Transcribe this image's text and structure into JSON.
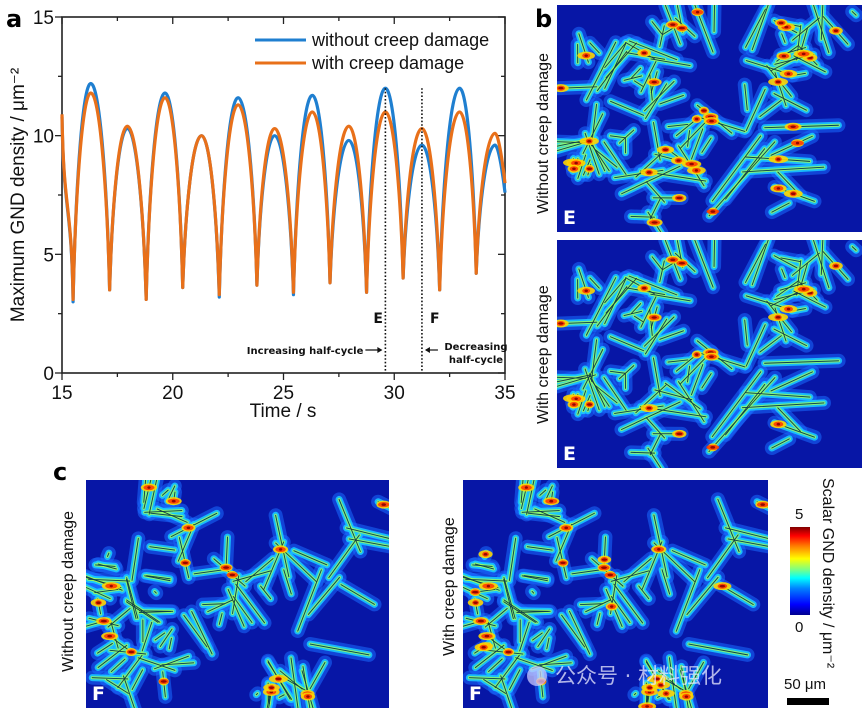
{
  "panels": {
    "a": {
      "letter": "a"
    },
    "b": {
      "letter": "b",
      "top_label": "Without creep damage",
      "top_tag": "E",
      "bottom_label": "With creep damage",
      "bottom_tag": "E"
    },
    "c": {
      "letter": "c",
      "left_label": "Without creep damage",
      "left_tag": "F",
      "right_label": "With creep damage",
      "right_tag": "F"
    }
  },
  "colorbar": {
    "title": "Scalar GND density / μm⁻²",
    "max_label": "5",
    "min_label": "0",
    "range": [
      0,
      5
    ]
  },
  "scale_bar": {
    "label": "50 μm"
  },
  "watermark": {
    "text": "公众号 · 材料强化"
  },
  "chart_data": {
    "type": "line",
    "title": "",
    "xlabel": "Time / s",
    "ylabel": "Maximum GND density / μm⁻²",
    "xlim": [
      15,
      35
    ],
    "ylim": [
      0,
      15
    ],
    "xticks": [
      15,
      20,
      25,
      30,
      35
    ],
    "yticks": [
      0,
      5,
      10,
      15
    ],
    "x_minor_step": 2.5,
    "y_minor_step": 2.5,
    "grid": false,
    "legend_position": "top-right",
    "colors": {
      "without": "#1f7fd0",
      "with": "#e8701a"
    },
    "series": [
      {
        "name": "without creep damage",
        "key": "without",
        "troughs": [
          [
            15.5,
            3.0
          ],
          [
            17.15,
            3.5
          ],
          [
            18.8,
            3.1
          ],
          [
            20.45,
            3.6
          ],
          [
            22.1,
            3.2
          ],
          [
            23.8,
            3.7
          ],
          [
            25.45,
            3.3
          ],
          [
            27.1,
            3.8
          ],
          [
            28.75,
            3.4
          ],
          [
            30.4,
            4.0
          ],
          [
            32.05,
            3.5
          ],
          [
            33.7,
            4.2
          ]
        ],
        "peaks": [
          [
            16.3,
            12.2
          ],
          [
            17.95,
            10.3
          ],
          [
            19.65,
            11.8
          ],
          [
            21.3,
            10.0
          ],
          [
            22.95,
            11.6
          ],
          [
            24.6,
            10.0
          ],
          [
            26.3,
            11.7
          ],
          [
            27.95,
            9.8
          ],
          [
            29.6,
            12.0
          ],
          [
            31.25,
            9.6
          ],
          [
            32.95,
            12.0
          ],
          [
            34.55,
            9.6
          ]
        ],
        "start": [
          15,
          10.8
        ],
        "end": [
          35,
          7.6
        ]
      },
      {
        "name": "with creep damage",
        "key": "with",
        "troughs": [
          [
            15.5,
            3.1
          ],
          [
            17.15,
            3.5
          ],
          [
            18.8,
            3.1
          ],
          [
            20.45,
            3.6
          ],
          [
            22.1,
            3.3
          ],
          [
            23.8,
            3.7
          ],
          [
            25.45,
            3.4
          ],
          [
            27.1,
            3.8
          ],
          [
            28.75,
            3.4
          ],
          [
            30.4,
            4.0
          ],
          [
            32.05,
            3.5
          ],
          [
            33.7,
            4.2
          ]
        ],
        "peaks": [
          [
            16.3,
            11.8
          ],
          [
            17.95,
            10.4
          ],
          [
            19.65,
            11.6
          ],
          [
            21.3,
            10.0
          ],
          [
            22.95,
            11.3
          ],
          [
            24.6,
            10.3
          ],
          [
            26.3,
            11.0
          ],
          [
            27.95,
            10.4
          ],
          [
            29.6,
            11.0
          ],
          [
            31.25,
            10.3
          ],
          [
            32.95,
            11.0
          ],
          [
            34.55,
            10.1
          ]
        ],
        "start": [
          15,
          10.9
        ],
        "end": [
          35,
          8.0
        ]
      }
    ],
    "annotations": [
      {
        "type": "vline",
        "x": 29.6,
        "label": "E",
        "side": "left"
      },
      {
        "type": "vline",
        "x": 31.25,
        "label": "F",
        "side": "right"
      },
      {
        "type": "arrow-text",
        "text": "Increasing half-cycle",
        "points_to": "E"
      },
      {
        "type": "arrow-text",
        "lines": [
          "Decreasing",
          "half-cycle"
        ],
        "points_to": "F"
      }
    ]
  }
}
